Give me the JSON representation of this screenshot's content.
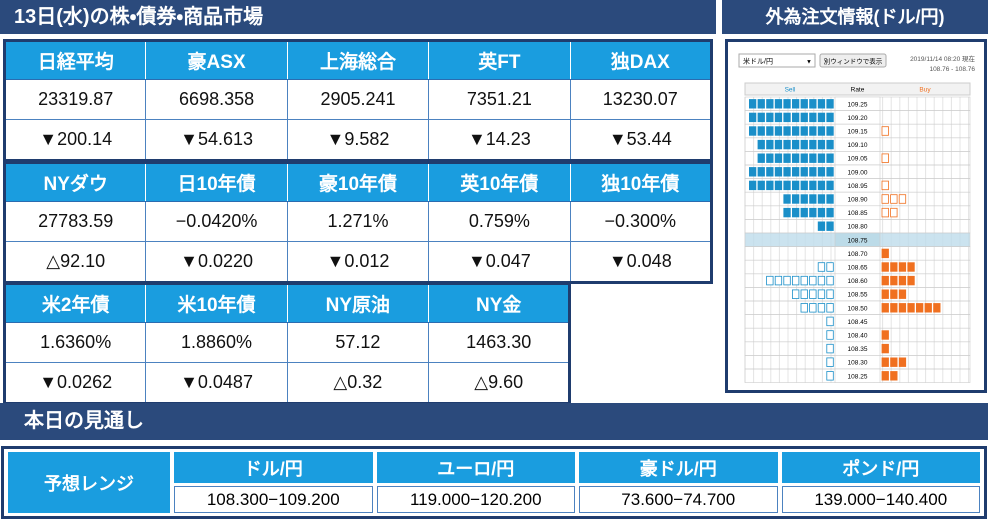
{
  "market": {
    "title": "13日(水)の株・債券・商品市場",
    "tables": [
      {
        "headers": [
          "日経平均",
          "豪ASX",
          "上海総合",
          "英FT",
          "独DAX"
        ],
        "rows": [
          [
            "23319.87",
            "6698.358",
            "2905.241",
            "7351.21",
            "13230.07"
          ],
          [
            "▼200.14",
            "▼54.613",
            "▼9.582",
            "▼14.23",
            "▼53.44"
          ]
        ]
      },
      {
        "headers": [
          "NYダウ",
          "日10年債",
          "豪10年債",
          "英10年債",
          "独10年債"
        ],
        "rows": [
          [
            "27783.59",
            "−0.0420%",
            "1.271%",
            "0.759%",
            "−0.300%"
          ],
          [
            "△92.10",
            "▼0.0220",
            "▼0.012",
            "▼0.047",
            "▼0.048"
          ]
        ]
      },
      {
        "headers": [
          "米2年債",
          "米10年債",
          "NY原油",
          "NY金"
        ],
        "rows": [
          [
            "1.6360%",
            "1.8860%",
            "57.12",
            "1463.30"
          ],
          [
            "▼0.0262",
            "▼0.0487",
            "△0.32",
            "△9.60"
          ]
        ]
      }
    ]
  },
  "fx_orders": {
    "title": "外為注文情報(ドル/円)",
    "pair": "米ドル/円",
    "button": "別ウィンドウで表示",
    "timestamp": "2019/11/14 08:20 現在",
    "range": "108.76 - 108.76",
    "headers": {
      "sell": "Sell",
      "rate": "Rate",
      "buy": "Buy"
    },
    "current_rate": "108.75",
    "rates": [
      "109.25",
      "109.20",
      "109.15",
      "109.10",
      "109.05",
      "109.00",
      "108.95",
      "108.90",
      "108.85",
      "108.80",
      "108.75",
      "108.70",
      "108.65",
      "108.60",
      "108.55",
      "108.50",
      "108.45",
      "108.40",
      "108.35",
      "108.30",
      "108.25"
    ],
    "sell": [
      10,
      10,
      10,
      9,
      9,
      10,
      10,
      6,
      6,
      2,
      0,
      0,
      2,
      8,
      5,
      4,
      1,
      1,
      1,
      1,
      1
    ],
    "buy": [
      0,
      0,
      1,
      0,
      1,
      0,
      1,
      3,
      2,
      0,
      0,
      1,
      4,
      4,
      3,
      7,
      0,
      1,
      1,
      3,
      2
    ]
  },
  "outlook": {
    "title": "本日の見通し",
    "label": "予想レンジ",
    "headers": [
      "ドル/円",
      "ユーロ/円",
      "豪ドル/円",
      "ポンド/円"
    ],
    "values": [
      "108.300−109.200",
      "119.000−120.200",
      "73.600−74.700",
      "139.000−140.400"
    ]
  }
}
